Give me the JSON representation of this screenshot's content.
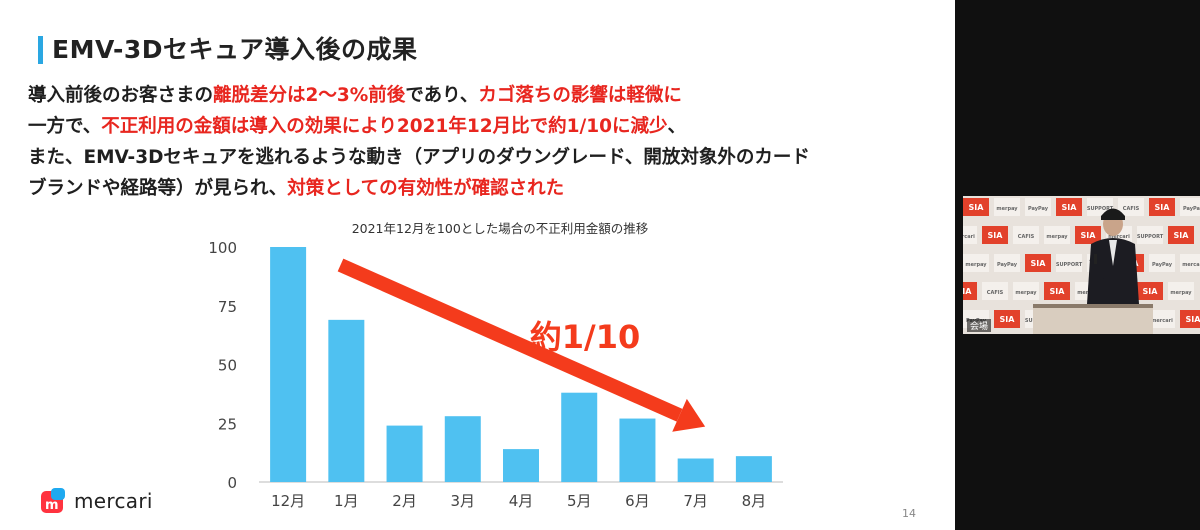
{
  "slide": {
    "title": "EMV-3Dセキュア導入後の成果",
    "paragraph": [
      [
        {
          "t": "導入前後のお客さまの",
          "hl": false
        },
        {
          "t": "離脱差分は2～3%前後",
          "hl": true
        },
        {
          "t": "であり、",
          "hl": false
        },
        {
          "t": "カゴ落ちの影響は軽微に",
          "hl": true
        }
      ],
      [
        {
          "t": "一方で、",
          "hl": false
        },
        {
          "t": "不正利用の金額は導入の効果により2021年12月比で約1/10に減少",
          "hl": true
        },
        {
          "t": "、",
          "hl": false
        }
      ],
      [
        {
          "t": "また、EMV-3Dセキュアを逃れるような動き（アプリのダウングレード、開放対象外のカード",
          "hl": false
        }
      ],
      [
        {
          "t": "ブランドや経路等）が見られ、",
          "hl": false
        },
        {
          "t": "対策としての有効性が確認された",
          "hl": true
        }
      ]
    ],
    "page_number": "14",
    "logo_text": "mercari",
    "colors": {
      "accent": "#2aa7e2",
      "highlight": "#e8261f",
      "bar": "#4fc1f1",
      "arrow": "#f43b1c"
    }
  },
  "chart_data": {
    "type": "bar",
    "title": "2021年12月を100とした場合の不正利用金額の推移",
    "categories": [
      "12月",
      "1月",
      "2月",
      "3月",
      "4月",
      "5月",
      "6月",
      "7月",
      "8月"
    ],
    "values": [
      100,
      69,
      24,
      28,
      14,
      38,
      27,
      10,
      11
    ],
    "ylim": [
      0,
      100
    ],
    "yticks": [
      0,
      25,
      50,
      75,
      100
    ],
    "xlabel": "",
    "ylabel": "",
    "annotation": "約1/10"
  },
  "video": {
    "label": "会場",
    "backdrop_logos": [
      "SIA",
      "CAFIS",
      "merpay",
      "PayPay",
      "mercari",
      "SUPPORT"
    ]
  }
}
